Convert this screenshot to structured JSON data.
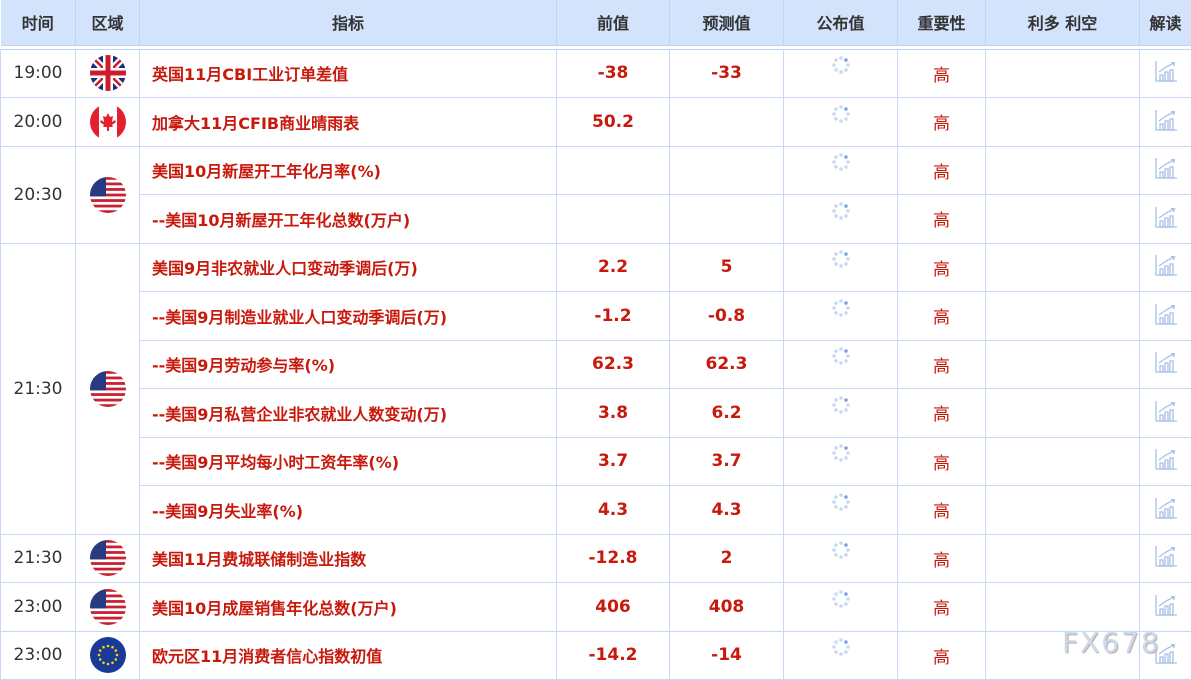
{
  "header": [
    "时间",
    "区域",
    "指标",
    "前值",
    "预测值",
    "公布值",
    "重要性",
    "利多 利空",
    "解读"
  ],
  "rows": [
    {
      "time": "19:00",
      "flag": "uk",
      "indicator": "英国11月CBI工业订单差值",
      "prev": "-38",
      "forecast": "-33",
      "importance": "高"
    },
    {
      "time": "20:00",
      "flag": "ca",
      "indicator": "加拿大11月CFIB商业晴雨表",
      "prev": "50.2",
      "forecast": "",
      "importance": "高"
    },
    {
      "time": "20:30",
      "flag": "us",
      "indicator": "美国10月新屋开工年化月率(%)",
      "prev": "",
      "forecast": "",
      "importance": "高",
      "span": 2
    },
    {
      "indicator": "--美国10月新屋开工年化总数(万户)",
      "prev": "",
      "forecast": "",
      "importance": "高"
    },
    {
      "time": "21:30",
      "flag": "us",
      "indicator": "美国9月非农就业人口变动季调后(万)",
      "prev": "2.2",
      "forecast": "5",
      "importance": "高",
      "span": 6
    },
    {
      "indicator": "--美国9月制造业就业人口变动季调后(万)",
      "prev": "-1.2",
      "forecast": "-0.8",
      "importance": "高"
    },
    {
      "indicator": "--美国9月劳动参与率(%)",
      "prev": "62.3",
      "forecast": "62.3",
      "importance": "高"
    },
    {
      "indicator": "--美国9月私营企业非农就业人数变动(万)",
      "prev": "3.8",
      "forecast": "6.2",
      "importance": "高"
    },
    {
      "indicator": "--美国9月平均每小时工资年率(%)",
      "prev": "3.7",
      "forecast": "3.7",
      "importance": "高"
    },
    {
      "indicator": "--美国9月失业率(%)",
      "prev": "4.3",
      "forecast": "4.3",
      "importance": "高"
    },
    {
      "time": "21:30",
      "flag": "us",
      "indicator": "美国11月费城联储制造业指数",
      "prev": "-12.8",
      "forecast": "2",
      "importance": "高"
    },
    {
      "time": "23:00",
      "flag": "us",
      "indicator": "美国10月成屋销售年化总数(万户)",
      "prev": "406",
      "forecast": "408",
      "importance": "高"
    },
    {
      "time": "23:00",
      "flag": "eu",
      "indicator": "欧元区11月消费者信心指数初值",
      "prev": "-14.2",
      "forecast": "-14",
      "importance": "高"
    }
  ],
  "icons": {
    "published": "loading-spinner-icon",
    "interpretation": "chart-trend-icon"
  },
  "watermark": "FX678",
  "colors": {
    "header_bg": "#d2e3fb",
    "accent_red": "#c8190d",
    "border": "#c5d8f5"
  }
}
